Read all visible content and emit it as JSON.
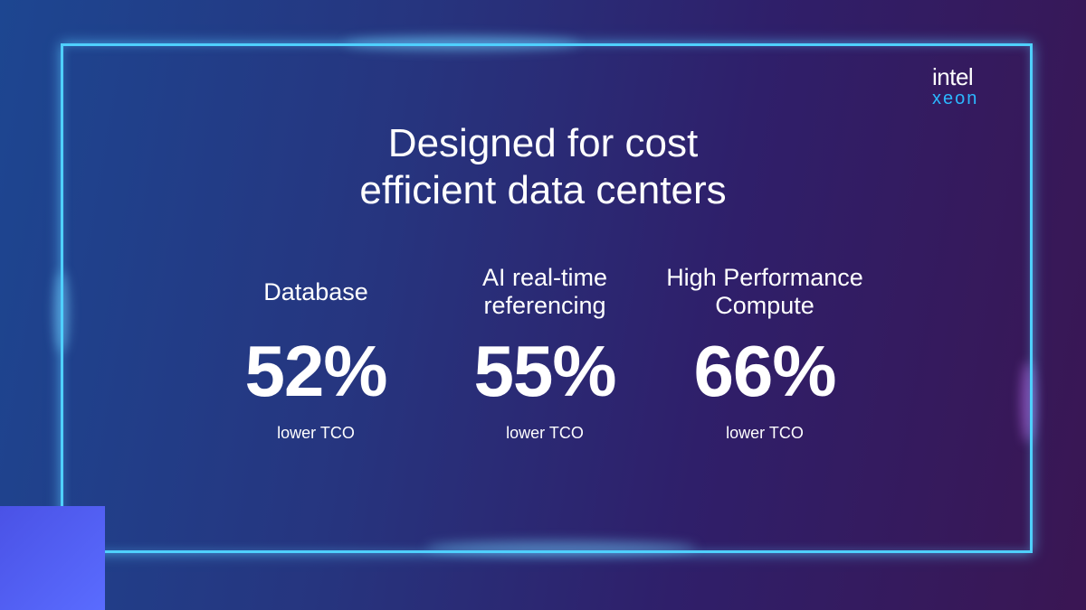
{
  "logo": {
    "brand": "intel",
    "product": "xeon"
  },
  "title": [
    "Designed for cost",
    "efficient data centers"
  ],
  "stats": [
    {
      "label": [
        "Database"
      ],
      "value": "52%",
      "caption": "lower TCO"
    },
    {
      "label": [
        "AI real-time",
        "referencing"
      ],
      "value": "55%",
      "caption": "lower TCO"
    },
    {
      "label": [
        "High Performance",
        "Compute"
      ],
      "value": "66%",
      "caption": "lower TCO"
    }
  ]
}
